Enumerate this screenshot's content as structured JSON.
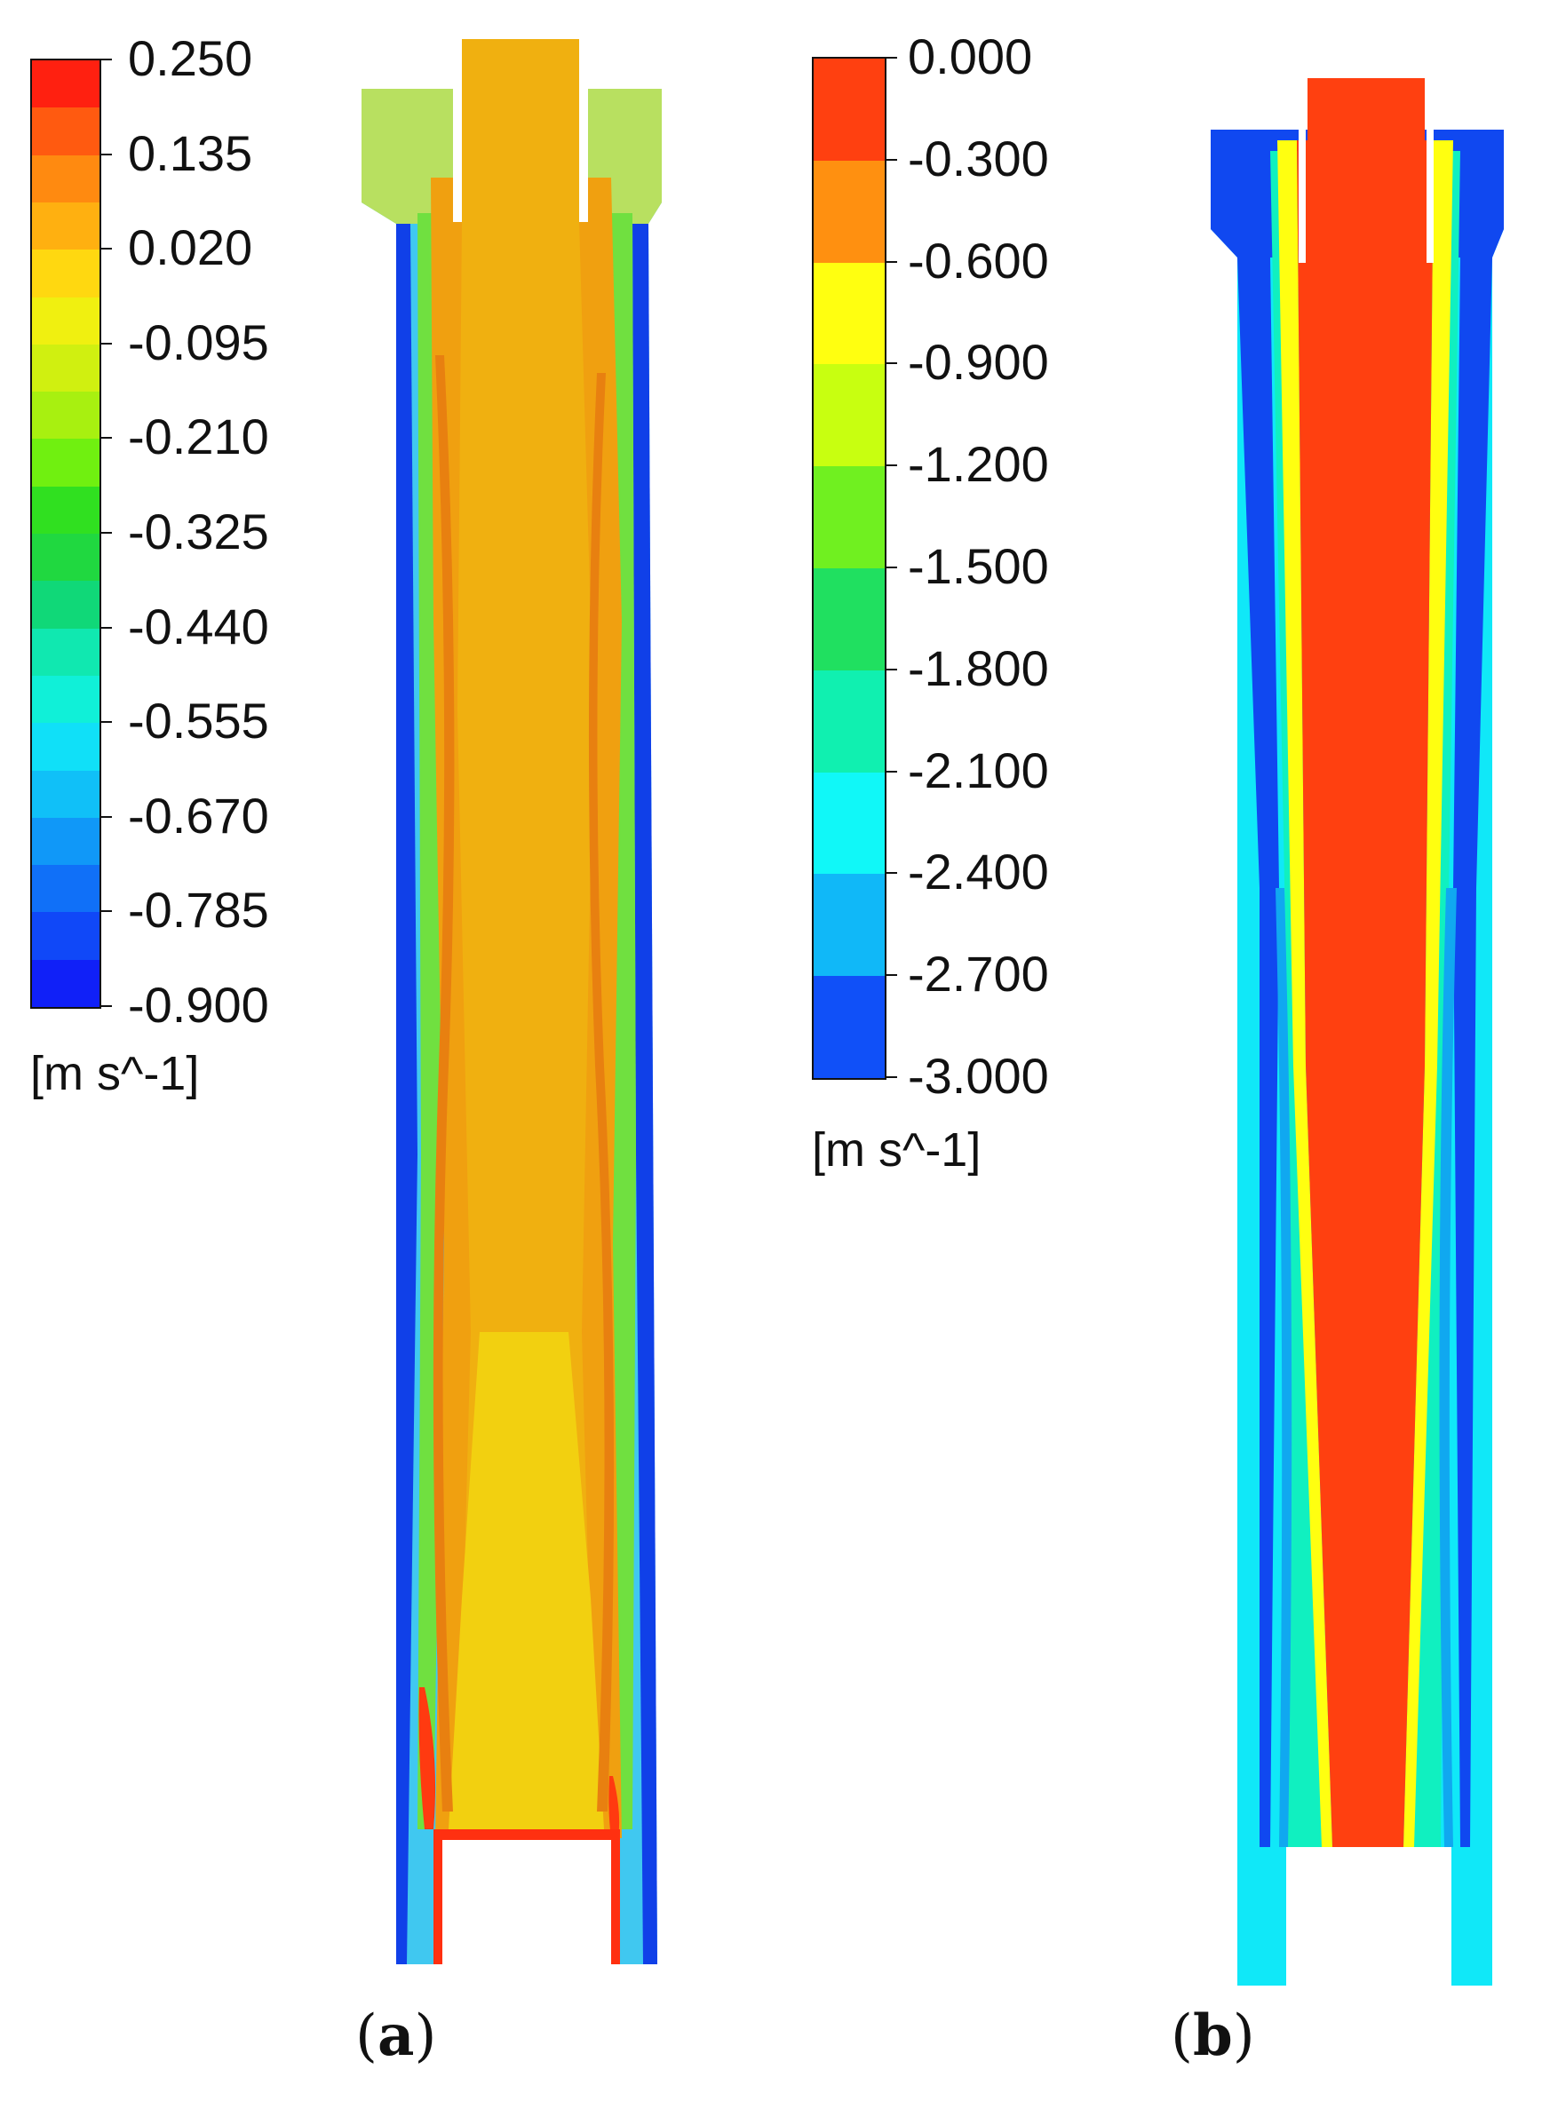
{
  "panels": [
    {
      "id": "a",
      "caption_letter": "a",
      "legend": {
        "unit": "[m s^-1]",
        "max": 0.25,
        "min": -0.9,
        "labels": [
          "0.250",
          "0.135",
          "0.020",
          "-0.095",
          "-0.210",
          "-0.325",
          "-0.440",
          "-0.555",
          "-0.670",
          "-0.785",
          "-0.900"
        ],
        "colors": [
          "#ff2010",
          "#ff5a10",
          "#ff8a10",
          "#ffb010",
          "#ffd810",
          "#f0f010",
          "#d0f010",
          "#a8f010",
          "#70f010",
          "#30e020",
          "#20d840",
          "#10d878",
          "#10e8b0",
          "#10f0d8",
          "#10e0f8",
          "#10c0f8",
          "#1098f8",
          "#1070f8",
          "#1048f8",
          "#1020f8"
        ]
      },
      "field": {
        "core_color": "#f0b010",
        "inner_color": "#f0a010",
        "streak_color": "#e88010",
        "lower_core_color": "#f2d010",
        "outer_color": "#40c8f0",
        "wall_color": "#1040e8"
      }
    },
    {
      "id": "b",
      "caption_letter": "b",
      "legend": {
        "unit": "[m s^-1]",
        "max": 0.0,
        "min": -3.0,
        "labels": [
          "0.000",
          "-0.300",
          "-0.600",
          "-0.900",
          "-1.200",
          "-1.500",
          "-1.800",
          "-2.100",
          "-2.400",
          "-2.700",
          "-3.000"
        ],
        "colors": [
          "#ff4010",
          "#ff9010",
          "#ffff10",
          "#c8ff10",
          "#70f020",
          "#20e060",
          "#10f0b0",
          "#10f8f8",
          "#10b8f8",
          "#1050f8"
        ]
      },
      "field": {
        "core_color": "#ff4010",
        "shear_color": "#ffff10",
        "mid_color": "#10f0c0",
        "outer_color": "#10e8f8",
        "streak_color": "#10a8f0",
        "wall_color": "#1048f0"
      }
    }
  ]
}
